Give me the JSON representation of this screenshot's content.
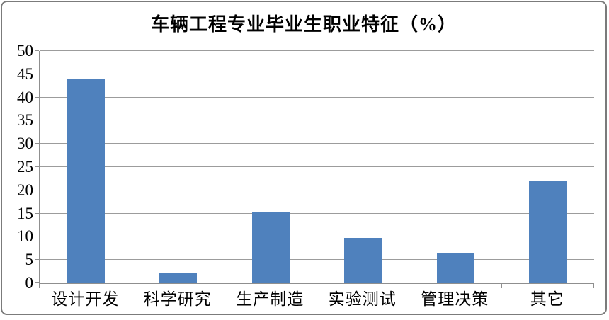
{
  "chart_data": {
    "type": "bar",
    "title": "车辆工程专业毕业生职业特征（%）",
    "categories": [
      "设计开发",
      "科学研究",
      "生产制造",
      "实验测试",
      "管理决策",
      "其它"
    ],
    "values": [
      44,
      2.2,
      15.4,
      9.8,
      6.6,
      22
    ],
    "xlabel": "",
    "ylabel": "",
    "ylim": [
      0,
      50
    ],
    "yticks": [
      0,
      5,
      10,
      15,
      20,
      25,
      30,
      35,
      40,
      45,
      50
    ],
    "grid": true,
    "legend_position": "none",
    "bar_color": "#4F81BD",
    "grid_color": "#9C9C9C",
    "axis_color": "#8F8F8F",
    "frame_border_color": "#7B7B7B",
    "text_color": "#000000"
  }
}
